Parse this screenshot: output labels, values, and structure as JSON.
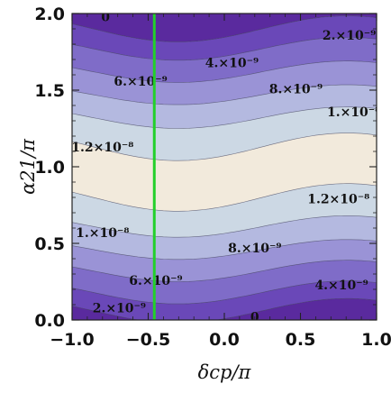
{
  "chart_data": {
    "type": "heatmap",
    "subtype": "contour",
    "xlabel": "δcp/π",
    "ylabel": "α21/π",
    "xlim": [
      -1.0,
      1.0
    ],
    "ylim": [
      0.0,
      2.0
    ],
    "x_ticks": [
      "−1.0",
      "−0.5",
      "0.0",
      "0.5",
      "1.0"
    ],
    "x_tick_values": [
      -1.0,
      -0.5,
      0.0,
      0.5,
      1.0
    ],
    "y_ticks": [
      "0.0",
      "0.5",
      "1.0",
      "1.5",
      "2.0"
    ],
    "y_tick_values": [
      0.0,
      0.5,
      1.0,
      1.5,
      2.0
    ],
    "contour_levels": [
      0,
      2e-09,
      4e-09,
      6e-09,
      8e-09,
      1e-08,
      1.2e-08
    ],
    "band_colors": [
      "#5a2a9e",
      "#6a48b8",
      "#7f6cc8",
      "#9a93d6",
      "#b4b9e0",
      "#ccd8e4",
      "#f2eadc"
    ],
    "contour_labels": [
      {
        "text": "0",
        "x": -0.78,
        "y": 1.98
      },
      {
        "text": "2.×10⁻⁹",
        "x": 0.82,
        "y": 1.86
      },
      {
        "text": "4.×10⁻⁹",
        "x": 0.05,
        "y": 1.68
      },
      {
        "text": "6.×10⁻⁹",
        "x": -0.55,
        "y": 1.56
      },
      {
        "text": "8.×10⁻⁹",
        "x": 0.47,
        "y": 1.51
      },
      {
        "text": "1.×10⁻⁸",
        "x": 0.85,
        "y": 1.36
      },
      {
        "text": "1.2×10⁻⁸",
        "x": -0.8,
        "y": 1.13
      },
      {
        "text": "1.2×10⁻⁸",
        "x": 0.75,
        "y": 0.79
      },
      {
        "text": "1.×10⁻⁸",
        "x": -0.8,
        "y": 0.57
      },
      {
        "text": "8.×10⁻⁹",
        "x": 0.2,
        "y": 0.47
      },
      {
        "text": "6.×10⁻⁹",
        "x": -0.45,
        "y": 0.26
      },
      {
        "text": "4.×10⁻⁹",
        "x": 0.77,
        "y": 0.23
      },
      {
        "text": "2.×10⁻⁹",
        "x": -0.69,
        "y": 0.08
      },
      {
        "text": "0",
        "x": 0.2,
        "y": 0.02
      }
    ],
    "vertical_line": {
      "x": -0.46,
      "color": "#22d02a"
    },
    "grid": false,
    "legend": "none"
  }
}
